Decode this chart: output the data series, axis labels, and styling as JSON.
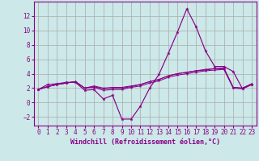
{
  "title": "",
  "xlabel": "Windchill (Refroidissement éolien,°C)",
  "background_color": "#cce8e8",
  "grid_color": "#aaaaaa",
  "line_color": "#880088",
  "x": [
    0,
    1,
    2,
    3,
    4,
    5,
    6,
    7,
    8,
    9,
    10,
    11,
    12,
    13,
    14,
    15,
    16,
    17,
    18,
    19,
    20,
    21,
    22,
    23
  ],
  "line1": [
    1.8,
    2.5,
    2.6,
    2.8,
    2.8,
    1.7,
    1.8,
    0.5,
    1.0,
    -2.3,
    -2.3,
    -0.5,
    2.0,
    3.9,
    6.8,
    9.8,
    13.0,
    10.5,
    7.2,
    5.0,
    5.0,
    4.3,
    1.9,
    2.5
  ],
  "line2": [
    1.8,
    2.2,
    2.5,
    2.7,
    2.9,
    2.0,
    2.1,
    1.7,
    1.8,
    1.8,
    2.1,
    2.3,
    2.7,
    3.0,
    3.5,
    3.8,
    4.0,
    4.2,
    4.4,
    4.5,
    4.6,
    2.0,
    1.9,
    2.5
  ],
  "line3": [
    1.8,
    2.2,
    2.5,
    2.7,
    2.9,
    2.0,
    2.2,
    1.9,
    2.0,
    2.0,
    2.2,
    2.5,
    2.9,
    3.2,
    3.7,
    4.0,
    4.2,
    4.4,
    4.6,
    4.7,
    4.7,
    2.1,
    2.0,
    2.6
  ],
  "line4": [
    1.8,
    2.2,
    2.5,
    2.7,
    2.9,
    2.0,
    2.3,
    2.0,
    2.1,
    2.1,
    2.3,
    2.5,
    2.9,
    3.2,
    3.7,
    4.0,
    4.2,
    4.4,
    4.5,
    4.7,
    4.8,
    2.1,
    2.0,
    2.6
  ],
  "ylim": [
    -3.2,
    14.0
  ],
  "xlim": [
    -0.5,
    23.5
  ],
  "yticks": [
    -2,
    0,
    2,
    4,
    6,
    8,
    10,
    12
  ],
  "xticks": [
    0,
    1,
    2,
    3,
    4,
    5,
    6,
    7,
    8,
    9,
    10,
    11,
    12,
    13,
    14,
    15,
    16,
    17,
    18,
    19,
    20,
    21,
    22,
    23
  ],
  "tick_fontsize": 5.5,
  "xlabel_fontsize": 6.0
}
